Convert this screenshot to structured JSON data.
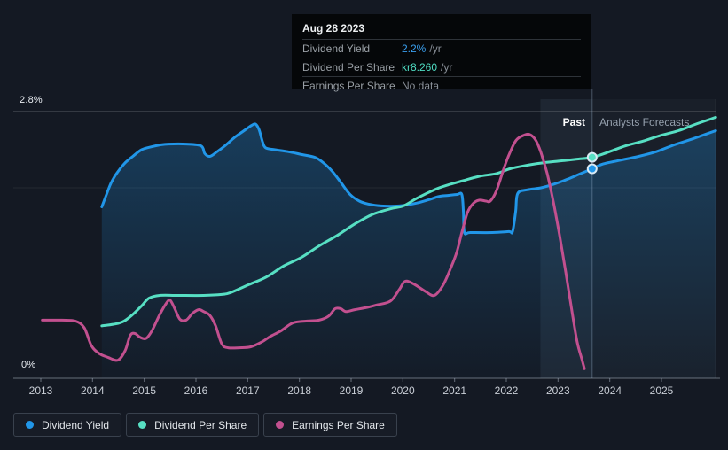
{
  "tooltip": {
    "title": "Aug 28 2023",
    "rows": [
      {
        "label": "Dividend Yield",
        "value": "2.2%",
        "suffix": "/yr",
        "value_color": "#3aa0f0"
      },
      {
        "label": "Dividend Per Share",
        "value": "kr8.260",
        "suffix": "/yr",
        "value_color": "#4fdcc2"
      },
      {
        "label": "Earnings Per Share",
        "value": "No data",
        "suffix": "",
        "value_color": "#8a9099"
      }
    ]
  },
  "chart_data": {
    "type": "line",
    "y_axis": {
      "min": 0,
      "max": 2.8,
      "unit": "%",
      "top_label": "2.8%",
      "bottom_label": "0%",
      "gridlines_pct": [
        2.8,
        2,
        1
      ]
    },
    "x_axis": {
      "tick_years": [
        2013,
        2014,
        2015,
        2016,
        2017,
        2018,
        2019,
        2020,
        2021,
        2022,
        2023,
        2024,
        2025
      ],
      "start_year": 2012.5,
      "end_year": 2026.05
    },
    "regions": {
      "past_label": "Past",
      "forecast_label": "Analysts Forecasts",
      "past_start_year": 2022.66,
      "divider_year": 2023.66,
      "divider_date": "Aug 28 2023"
    },
    "series": [
      {
        "id": "dividend-yield",
        "name": "Dividend Yield",
        "color": "#2196e8",
        "area": true,
        "marker": {
          "x": 2023.66,
          "y": 2.2,
          "label": "2.2%"
        },
        "points": [
          [
            2014.18,
            1.8
          ],
          [
            2014.27,
            1.93
          ],
          [
            2014.35,
            2.04
          ],
          [
            2014.44,
            2.13
          ],
          [
            2014.61,
            2.25
          ],
          [
            2014.78,
            2.33
          ],
          [
            2014.95,
            2.4
          ],
          [
            2015.13,
            2.43
          ],
          [
            2015.3,
            2.45
          ],
          [
            2015.47,
            2.46
          ],
          [
            2015.81,
            2.46
          ],
          [
            2016.1,
            2.44
          ],
          [
            2016.17,
            2.36
          ],
          [
            2016.27,
            2.33
          ],
          [
            2016.41,
            2.38
          ],
          [
            2016.58,
            2.45
          ],
          [
            2016.75,
            2.53
          ],
          [
            2016.93,
            2.6
          ],
          [
            2017.06,
            2.65
          ],
          [
            2017.15,
            2.67
          ],
          [
            2017.22,
            2.61
          ],
          [
            2017.29,
            2.48
          ],
          [
            2017.35,
            2.42
          ],
          [
            2017.53,
            2.4
          ],
          [
            2017.78,
            2.38
          ],
          [
            2018.04,
            2.35
          ],
          [
            2018.3,
            2.32
          ],
          [
            2018.47,
            2.26
          ],
          [
            2018.64,
            2.17
          ],
          [
            2018.81,
            2.05
          ],
          [
            2018.98,
            1.93
          ],
          [
            2019.16,
            1.86
          ],
          [
            2019.33,
            1.83
          ],
          [
            2019.58,
            1.81
          ],
          [
            2019.93,
            1.81
          ],
          [
            2020.27,
            1.84
          ],
          [
            2020.53,
            1.88
          ],
          [
            2020.7,
            1.91
          ],
          [
            2020.87,
            1.92
          ],
          [
            2021.05,
            1.93
          ],
          [
            2021.14,
            1.93
          ],
          [
            2021.17,
            1.75
          ],
          [
            2021.19,
            1.53
          ],
          [
            2021.3,
            1.53
          ],
          [
            2021.73,
            1.53
          ],
          [
            2022.05,
            1.54
          ],
          [
            2022.12,
            1.54
          ],
          [
            2022.18,
            1.75
          ],
          [
            2022.22,
            1.94
          ],
          [
            2022.41,
            1.98
          ],
          [
            2022.67,
            2.0
          ],
          [
            2022.93,
            2.04
          ],
          [
            2023.18,
            2.09
          ],
          [
            2023.44,
            2.15
          ],
          [
            2023.66,
            2.2
          ],
          [
            2023.87,
            2.25
          ],
          [
            2024.21,
            2.29
          ],
          [
            2024.56,
            2.33
          ],
          [
            2024.9,
            2.38
          ],
          [
            2025.24,
            2.45
          ],
          [
            2025.58,
            2.51
          ],
          [
            2025.84,
            2.56
          ],
          [
            2026.05,
            2.6
          ]
        ]
      },
      {
        "id": "dividend-per-share",
        "name": "Dividend Per Share",
        "color": "#57dfc3",
        "marker": {
          "x": 2023.66,
          "y": 2.32,
          "label": "kr8.260"
        },
        "points": [
          [
            2014.18,
            0.55
          ],
          [
            2014.44,
            0.57
          ],
          [
            2014.61,
            0.6
          ],
          [
            2014.78,
            0.67
          ],
          [
            2014.95,
            0.76
          ],
          [
            2015.09,
            0.84
          ],
          [
            2015.3,
            0.87
          ],
          [
            2015.64,
            0.87
          ],
          [
            2016.15,
            0.87
          ],
          [
            2016.5,
            0.88
          ],
          [
            2016.67,
            0.9
          ],
          [
            2017.01,
            0.98
          ],
          [
            2017.35,
            1.06
          ],
          [
            2017.7,
            1.18
          ],
          [
            2018.04,
            1.27
          ],
          [
            2018.38,
            1.39
          ],
          [
            2018.73,
            1.5
          ],
          [
            2019.07,
            1.62
          ],
          [
            2019.41,
            1.72
          ],
          [
            2019.76,
            1.78
          ],
          [
            2020.01,
            1.81
          ],
          [
            2020.27,
            1.89
          ],
          [
            2020.61,
            1.98
          ],
          [
            2020.87,
            2.03
          ],
          [
            2021.13,
            2.07
          ],
          [
            2021.47,
            2.12
          ],
          [
            2021.81,
            2.15
          ],
          [
            2022.07,
            2.2
          ],
          [
            2022.33,
            2.23
          ],
          [
            2022.67,
            2.26
          ],
          [
            2023.01,
            2.28
          ],
          [
            2023.35,
            2.3
          ],
          [
            2023.66,
            2.32
          ],
          [
            2023.95,
            2.37
          ],
          [
            2024.3,
            2.44
          ],
          [
            2024.64,
            2.49
          ],
          [
            2024.98,
            2.55
          ],
          [
            2025.33,
            2.6
          ],
          [
            2025.67,
            2.67
          ],
          [
            2026.05,
            2.74
          ]
        ]
      },
      {
        "id": "earnings-per-share",
        "name": "Earnings Per Share",
        "color": "#c2508f",
        "points": [
          [
            2013.03,
            0.61
          ],
          [
            2013.41,
            0.61
          ],
          [
            2013.67,
            0.6
          ],
          [
            2013.84,
            0.53
          ],
          [
            2013.98,
            0.34
          ],
          [
            2014.13,
            0.26
          ],
          [
            2014.3,
            0.22
          ],
          [
            2014.49,
            0.19
          ],
          [
            2014.63,
            0.29
          ],
          [
            2014.73,
            0.45
          ],
          [
            2014.82,
            0.47
          ],
          [
            2014.92,
            0.43
          ],
          [
            2015.04,
            0.42
          ],
          [
            2015.16,
            0.51
          ],
          [
            2015.3,
            0.67
          ],
          [
            2015.43,
            0.79
          ],
          [
            2015.5,
            0.82
          ],
          [
            2015.59,
            0.73
          ],
          [
            2015.69,
            0.62
          ],
          [
            2015.81,
            0.61
          ],
          [
            2015.93,
            0.68
          ],
          [
            2016.05,
            0.72
          ],
          [
            2016.15,
            0.7
          ],
          [
            2016.27,
            0.66
          ],
          [
            2016.38,
            0.55
          ],
          [
            2016.5,
            0.36
          ],
          [
            2016.62,
            0.32
          ],
          [
            2016.84,
            0.32
          ],
          [
            2017.06,
            0.33
          ],
          [
            2017.27,
            0.38
          ],
          [
            2017.44,
            0.44
          ],
          [
            2017.65,
            0.5
          ],
          [
            2017.87,
            0.58
          ],
          [
            2018.13,
            0.6
          ],
          [
            2018.38,
            0.61
          ],
          [
            2018.56,
            0.65
          ],
          [
            2018.69,
            0.73
          ],
          [
            2018.8,
            0.73
          ],
          [
            2018.9,
            0.7
          ],
          [
            2019.07,
            0.72
          ],
          [
            2019.28,
            0.74
          ],
          [
            2019.5,
            0.77
          ],
          [
            2019.76,
            0.81
          ],
          [
            2019.93,
            0.93
          ],
          [
            2020.05,
            1.02
          ],
          [
            2020.24,
            0.98
          ],
          [
            2020.44,
            0.91
          ],
          [
            2020.61,
            0.87
          ],
          [
            2020.78,
            0.98
          ],
          [
            2020.92,
            1.15
          ],
          [
            2021.04,
            1.32
          ],
          [
            2021.14,
            1.53
          ],
          [
            2021.25,
            1.74
          ],
          [
            2021.35,
            1.83
          ],
          [
            2021.47,
            1.87
          ],
          [
            2021.61,
            1.86
          ],
          [
            2021.69,
            1.86
          ],
          [
            2021.81,
            1.97
          ],
          [
            2021.95,
            2.2
          ],
          [
            2022.07,
            2.37
          ],
          [
            2022.19,
            2.5
          ],
          [
            2022.33,
            2.55
          ],
          [
            2022.45,
            2.56
          ],
          [
            2022.57,
            2.5
          ],
          [
            2022.67,
            2.37
          ],
          [
            2022.79,
            2.15
          ],
          [
            2022.91,
            1.85
          ],
          [
            2023.03,
            1.5
          ],
          [
            2023.15,
            1.11
          ],
          [
            2023.27,
            0.7
          ],
          [
            2023.37,
            0.38
          ],
          [
            2023.46,
            0.2
          ],
          [
            2023.51,
            0.1
          ]
        ]
      }
    ]
  },
  "legend": [
    {
      "label": "Dividend Yield",
      "color": "#2196e8"
    },
    {
      "label": "Dividend Per Share",
      "color": "#57dfc3"
    },
    {
      "label": "Earnings Per Share",
      "color": "#c2508f"
    }
  ],
  "colors": {
    "background": "#141923",
    "past_band": "rgba(157,194,228,0.08)",
    "forecast_band": "rgba(157,194,228,0.035)",
    "axis": "rgba(170,180,194,0.55)"
  }
}
